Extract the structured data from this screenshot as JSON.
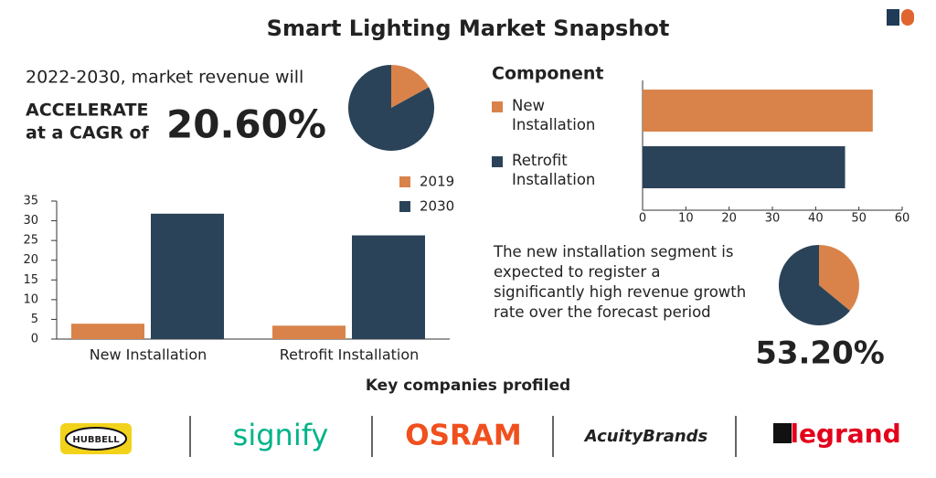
{
  "header": {
    "title": "Smart Lighting Market Snapshot"
  },
  "cagr": {
    "lead": "2022-2030, market revenue will",
    "emphasis": "ACCELERATE",
    "suffix": "at a CAGR of",
    "value": "20.60%"
  },
  "chart_data": [
    {
      "type": "pie",
      "values": [
        17,
        83
      ],
      "colors": [
        "#d9834a",
        "#2b4358"
      ]
    },
    {
      "type": "bar",
      "categories": [
        "New Installation",
        "Retrofit Installation"
      ],
      "series": [
        {
          "name": "2019",
          "color": "#d9834a",
          "values": [
            3.9,
            3.4
          ]
        },
        {
          "name": "2030",
          "color": "#2b4358",
          "values": [
            31.8,
            26.3
          ]
        }
      ],
      "ylim": [
        0,
        35
      ],
      "yticks": [
        0,
        5,
        10,
        15,
        20,
        25,
        30,
        35
      ]
    },
    {
      "type": "hbar",
      "title": "Component",
      "categories": [
        "New Installation",
        "Retrofit Installation"
      ],
      "values": [
        53.2,
        46.8
      ],
      "colors": [
        "#d9834a",
        "#2b4358"
      ],
      "xlim": [
        0,
        60
      ],
      "xticks": [
        0,
        10,
        20,
        30,
        40,
        50,
        60
      ]
    },
    {
      "type": "pie",
      "values": [
        36,
        64
      ],
      "colors": [
        "#d9834a",
        "#2b4358"
      ]
    }
  ],
  "insight": {
    "text": "The new installation segment is expected to register a significantly high revenue growth rate over the forecast period",
    "stat": "53.20%"
  },
  "companies": {
    "title": "Key companies profiled",
    "names": [
      "HUBBELL",
      "signify",
      "OSRAM",
      "AcuityBrands",
      "legrand"
    ]
  }
}
